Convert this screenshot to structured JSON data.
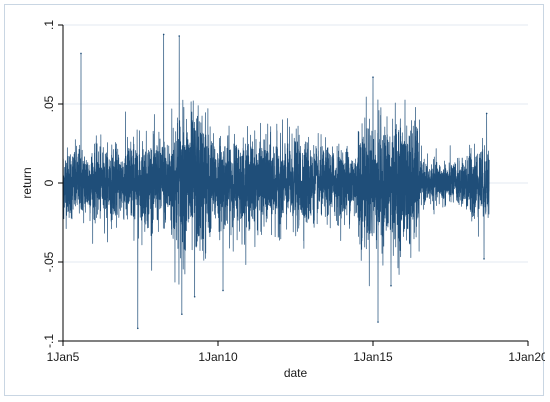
{
  "chart_data": {
    "type": "line",
    "xlabel": "date",
    "ylabel": "return",
    "x_range": [
      "2005-01-01",
      "2020-01-01"
    ],
    "ylim": [
      -0.1,
      0.1
    ],
    "y_ticks": [
      {
        "value": 0.1,
        "label": ".1"
      },
      {
        "value": 0.05,
        "label": ".05"
      },
      {
        "value": 0,
        "label": "0"
      },
      {
        "value": -0.05,
        "label": "-.05"
      },
      {
        "value": -0.1,
        "label": "-.1"
      }
    ],
    "x_ticks": [
      {
        "value": "2005-01-01",
        "label": "1Jan5"
      },
      {
        "value": "2010-01-01",
        "label": "1Jan10"
      },
      {
        "value": "2015-01-01",
        "label": "1Jan15"
      },
      {
        "value": "2020-01-01",
        "label": "1Jan20"
      }
    ],
    "grid": "horizontal",
    "series": [
      {
        "color": "#1f4e79",
        "data_start": "2005-01-01",
        "data_end": "2018-10-01",
        "volatility_regimes": [
          {
            "from": "2005-01-01",
            "to": "2006-12-31",
            "typical_abs_return": 0.02
          },
          {
            "from": "2007-01-01",
            "to": "2008-06-30",
            "typical_abs_return": 0.025
          },
          {
            "from": "2008-07-01",
            "to": "2009-09-30",
            "typical_abs_return": 0.04
          },
          {
            "from": "2009-10-01",
            "to": "2012-12-31",
            "typical_abs_return": 0.025
          },
          {
            "from": "2013-01-01",
            "to": "2014-06-30",
            "typical_abs_return": 0.02
          },
          {
            "from": "2014-07-01",
            "to": "2016-06-30",
            "typical_abs_return": 0.035
          },
          {
            "from": "2016-07-01",
            "to": "2017-12-31",
            "typical_abs_return": 0.012
          },
          {
            "from": "2018-01-01",
            "to": "2018-10-01",
            "typical_abs_return": 0.02
          }
        ],
        "notable_points": [
          {
            "x": "2005-08-01",
            "y": 0.082
          },
          {
            "x": "2007-06-01",
            "y": -0.092
          },
          {
            "x": "2008-04-01",
            "y": 0.094
          },
          {
            "x": "2008-10-01",
            "y": 0.093
          },
          {
            "x": "2008-11-01",
            "y": -0.083
          },
          {
            "x": "2009-04-01",
            "y": -0.072
          },
          {
            "x": "2010-03-01",
            "y": -0.068
          },
          {
            "x": "2015-01-01",
            "y": 0.067
          },
          {
            "x": "2015-03-01",
            "y": -0.088
          },
          {
            "x": "2015-08-01",
            "y": -0.065
          },
          {
            "x": "2018-09-01",
            "y": 0.044
          },
          {
            "x": "2018-08-01",
            "y": -0.048
          }
        ]
      }
    ]
  }
}
